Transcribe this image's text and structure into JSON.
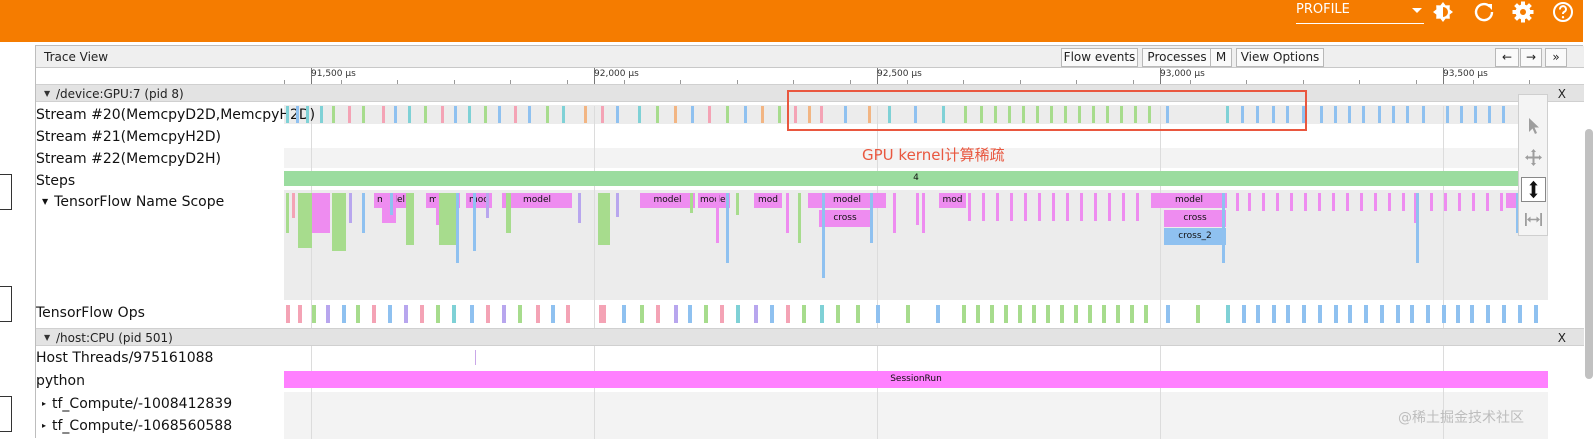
{
  "topbar": {
    "profile_select": "PROFILE",
    "accent": "#f57c00",
    "icons": [
      "brightness-icon",
      "refresh-icon",
      "settings-icon",
      "help-icon"
    ]
  },
  "trace": {
    "title": "Trace View",
    "buttons": {
      "flow_events": "Flow events",
      "processes": "Processes",
      "m": "M",
      "view_options": "View Options"
    },
    "nav": {
      "left": "←",
      "right": "→",
      "more": "»"
    },
    "ruler": {
      "labels": [
        "91,500 μs",
        "92,000 μs",
        "92,500 μs",
        "93,000 μs",
        "93,500 μs"
      ]
    },
    "gpu_group": {
      "title": "/device:GPU:7 (pid 8)",
      "close": "X",
      "rows": {
        "stream20": "Stream #20(MemcpyD2D,MemcpyH2D)",
        "stream21": "Stream #21(MemcpyH2D)",
        "stream22": "Stream #22(MemcpyD2H)",
        "steps": "Steps",
        "tf_scope": "TensorFlow Name Scope",
        "tf_ops": "TensorFlow Ops"
      },
      "steps_value": "4",
      "scope_slices": {
        "model": "model",
        "mod": "mod",
        "cross": "cross",
        "cross_2": "cross_2"
      }
    },
    "cpu_group": {
      "title": "/host:CPU (pid 501)",
      "close": "X",
      "rows": {
        "host_threads": "Host Threads/975161088",
        "python": "python",
        "tf_compute_1": "tf_Compute/-1008412839",
        "tf_compute_2": "tf_Compute/-1068560588"
      },
      "session_run": "SessionRun"
    }
  },
  "annotation": {
    "text": "GPU kernel计算稀疏",
    "color": "#e9573f"
  },
  "watermark": "@稀土掘金技术社区",
  "colors": {
    "teal": "#7fd1d6",
    "blue": "#8fc1f0",
    "green": "#a7dc8d",
    "pink": "#f4a3b5",
    "orange": "#f2b583",
    "purple": "#b8a6ee",
    "magenta": "#ee8cf0",
    "steps": "#9bdc9f",
    "session": "#ff80ff"
  }
}
